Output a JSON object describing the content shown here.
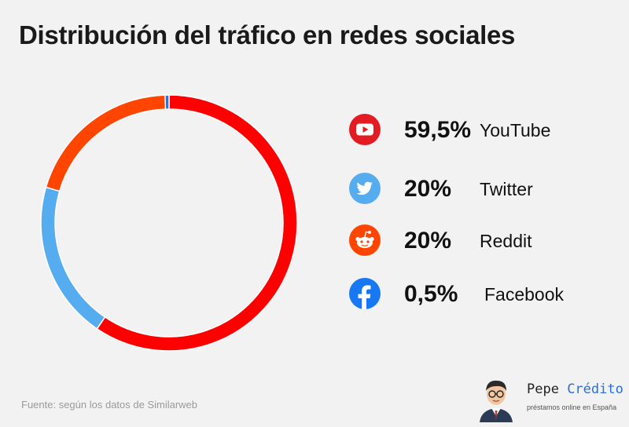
{
  "title": "Distribución del tráfico en redes sociales",
  "chart_data": {
    "type": "pie",
    "title": "Distribución del tráfico en redes sociales",
    "slices": [
      {
        "label": "YouTube",
        "display": "59,5%",
        "value": 59.5,
        "color": "#ff0000",
        "icon": "youtube-icon"
      },
      {
        "label": "Twitter",
        "display": "20%",
        "value": 20,
        "color": "#55acee",
        "icon": "twitter-icon"
      },
      {
        "label": "Reddit",
        "display": "20%",
        "value": 20,
        "color": "#ff4500",
        "icon": "reddit-icon"
      },
      {
        "label": "Facebook",
        "display": "0,5%",
        "value": 0.5,
        "color": "#1877f2",
        "icon": "facebook-icon"
      }
    ],
    "legend": "right"
  },
  "source": "Fuente: según los datos de Similarweb",
  "brand": {
    "name_part1": "Pepe ",
    "name_part2": "Crédito",
    "tagline": "préstamos online en España"
  }
}
